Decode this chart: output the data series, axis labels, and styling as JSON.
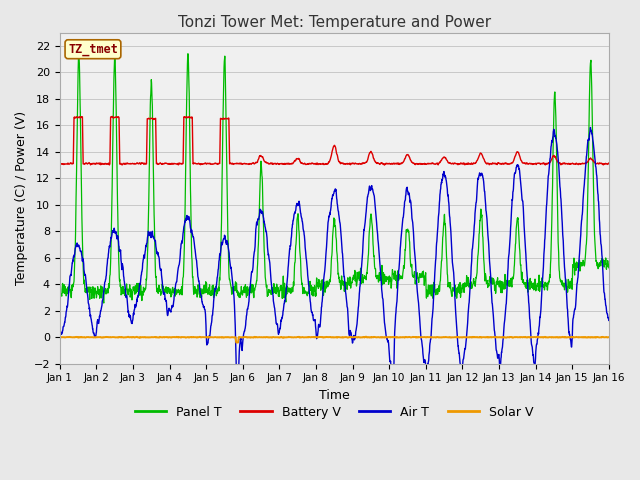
{
  "title": "Tonzi Tower Met: Temperature and Power",
  "xlabel": "Time",
  "ylabel": "Temperature (C) / Power (V)",
  "ylim": [
    -2,
    23
  ],
  "yticks": [
    -2,
    0,
    2,
    4,
    6,
    8,
    10,
    12,
    14,
    16,
    18,
    20,
    22
  ],
  "xlim": [
    0,
    15
  ],
  "xtick_labels": [
    "Jan 1",
    "Jan 2",
    "Jan 3",
    "Jan 4",
    "Jan 5",
    "Jan 6",
    "Jan 7",
    "Jan 8",
    "Jan 9",
    "Jan 10",
    "Jan 11",
    "Jan 12",
    "Jan 13",
    "Jan 14",
    "Jan 15",
    "Jan 16"
  ],
  "colors": {
    "panel_t": "#00BB00",
    "battery_v": "#DD0000",
    "air_t": "#0000CC",
    "solar_v": "#EE9900"
  },
  "legend_labels": [
    "Panel T",
    "Battery V",
    "Air T",
    "Solar V"
  ],
  "annotation_text": "TZ_tmet",
  "annotation_color": "#880000",
  "annotation_bg": "#FFFFCC",
  "background_color": "#E8E8E8",
  "plot_bg": "#F0F0F0",
  "title_fontsize": 11,
  "axis_fontsize": 9
}
